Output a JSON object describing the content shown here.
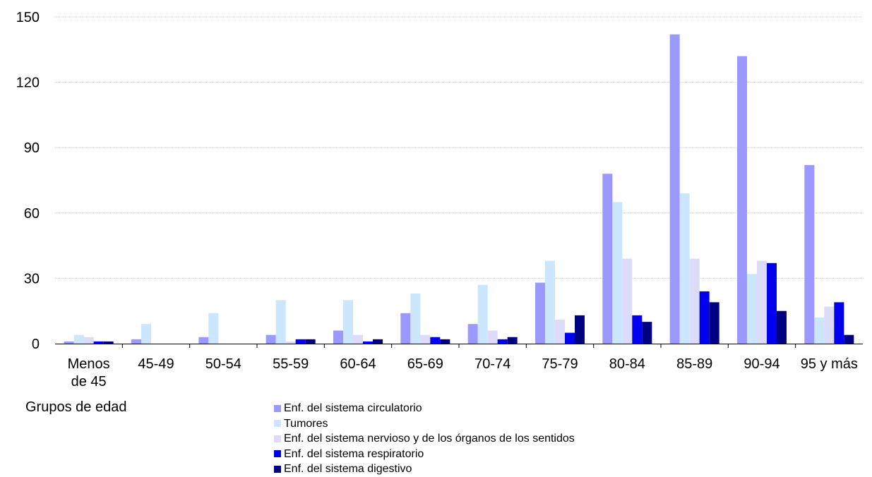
{
  "chart_data": {
    "type": "bar",
    "title": "",
    "xlabel": "Grupos de edad",
    "ylabel": "",
    "ylim": [
      0,
      150
    ],
    "yticks": [
      "0",
      "30",
      "60",
      "90",
      "120",
      "150"
    ],
    "ytick_values": [
      0,
      30,
      60,
      90,
      120,
      150
    ],
    "grid": true,
    "legend_position": "bottom",
    "categories": [
      [
        "Menos",
        "de 45"
      ],
      [
        "45-49"
      ],
      [
        "50-54"
      ],
      [
        "55-59"
      ],
      [
        "60-64"
      ],
      [
        "65-69"
      ],
      [
        "70-74"
      ],
      [
        "75-79"
      ],
      [
        "80-84"
      ],
      [
        "85-89"
      ],
      [
        "90-94"
      ],
      [
        "95 y más"
      ]
    ],
    "series": [
      {
        "name": "Enf. del sistema circulatorio",
        "color": "#9999ff",
        "values": [
          1,
          2,
          3,
          4,
          6,
          14,
          9,
          28,
          78,
          142,
          132,
          82
        ]
      },
      {
        "name": "Tumores",
        "color": "#cce6ff",
        "values": [
          4,
          9,
          14,
          20,
          20,
          23,
          27,
          38,
          65,
          69,
          32,
          12
        ]
      },
      {
        "name": "Enf. del sistema nervioso y de los órganos de los sentidos",
        "color": "#dcdcfa",
        "values": [
          3,
          0,
          0,
          1,
          4,
          4,
          6,
          11,
          39,
          39,
          38,
          17
        ]
      },
      {
        "name": "Enf. del sistema respiratorio",
        "color": "#0000ee",
        "values": [
          1,
          0,
          0,
          2,
          1,
          3,
          2,
          5,
          13,
          24,
          37,
          19
        ]
      },
      {
        "name": "Enf. del sistema digestivo",
        "color": "#000080",
        "values": [
          1,
          0,
          0,
          2,
          2,
          2,
          3,
          13,
          10,
          19,
          15,
          4
        ]
      }
    ]
  }
}
